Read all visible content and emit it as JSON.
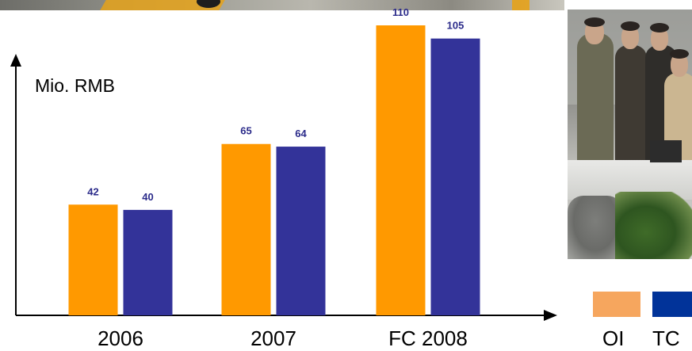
{
  "chart_data": {
    "type": "bar",
    "title": "",
    "xlabel": "",
    "ylabel": "Mio. RMB",
    "categories": [
      "2006",
      "2007",
      "FC 2008"
    ],
    "series": [
      {
        "name": "OI",
        "values": [
          42,
          65,
          110
        ],
        "color": "#FF9900"
      },
      {
        "name": "TC",
        "values": [
          40,
          64,
          105
        ],
        "color": "#333399"
      }
    ],
    "data_labels": [
      [
        "42",
        "65",
        "110"
      ],
      [
        "40",
        "64",
        "105"
      ]
    ],
    "ylim": [
      0,
      125
    ],
    "grid": false,
    "legend_position": "bottom-right"
  },
  "legend": {
    "items": [
      {
        "label": "OI",
        "color": "#F6A65E"
      },
      {
        "label": "TC",
        "color": "#013399"
      }
    ]
  },
  "decor": {
    "photo_icon": "group-photo",
    "banner_icon": "decorative-banner"
  }
}
